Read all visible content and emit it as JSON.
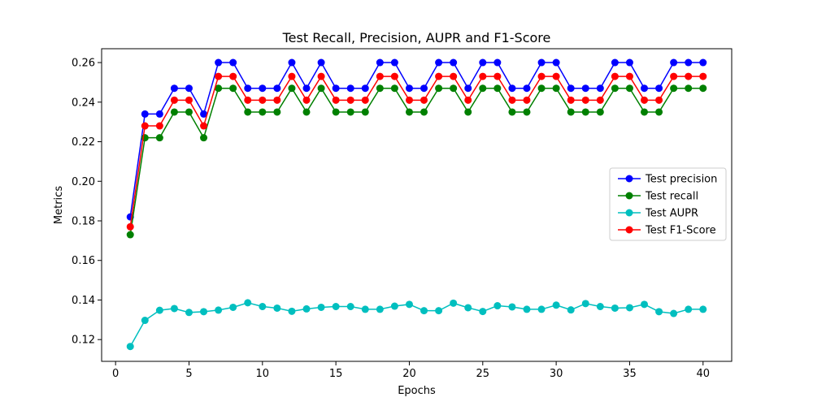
{
  "chart_data": {
    "type": "line",
    "title": "Test Recall, Precision, AUPR and F1-Score",
    "xlabel": "Epochs",
    "ylabel": "Metrics",
    "xlim": [
      -0.95,
      41.95
    ],
    "ylim": [
      0.109,
      0.267
    ],
    "xticks": [
      0,
      5,
      10,
      15,
      20,
      25,
      30,
      35,
      40
    ],
    "yticks": [
      0.12,
      0.14,
      0.16,
      0.18,
      0.2,
      0.22,
      0.24,
      0.26
    ],
    "ytick_labels": [
      "0.12",
      "0.14",
      "0.16",
      "0.18",
      "0.20",
      "0.22",
      "0.24",
      "0.26"
    ],
    "legend_position": "center-right",
    "grid": false,
    "x": [
      1,
      2,
      3,
      4,
      5,
      6,
      7,
      8,
      9,
      10,
      11,
      12,
      13,
      14,
      15,
      16,
      17,
      18,
      19,
      20,
      21,
      22,
      23,
      24,
      25,
      26,
      27,
      28,
      29,
      30,
      31,
      32,
      33,
      34,
      35,
      36,
      37,
      38,
      39,
      40
    ],
    "series": [
      {
        "name": "Test precision",
        "color": "#0000ff",
        "values": [
          0.182,
          0.234,
          0.234,
          0.247,
          0.247,
          0.234,
          0.26,
          0.26,
          0.247,
          0.247,
          0.247,
          0.26,
          0.247,
          0.26,
          0.247,
          0.247,
          0.247,
          0.26,
          0.26,
          0.247,
          0.247,
          0.26,
          0.26,
          0.247,
          0.26,
          0.26,
          0.247,
          0.247,
          0.26,
          0.26,
          0.247,
          0.247,
          0.247,
          0.26,
          0.26,
          0.247,
          0.247,
          0.26,
          0.26,
          0.26
        ]
      },
      {
        "name": "Test recall",
        "color": "#008000",
        "values": [
          0.173,
          0.222,
          0.222,
          0.235,
          0.235,
          0.222,
          0.247,
          0.247,
          0.235,
          0.235,
          0.235,
          0.247,
          0.235,
          0.247,
          0.235,
          0.235,
          0.235,
          0.247,
          0.247,
          0.235,
          0.235,
          0.247,
          0.247,
          0.235,
          0.247,
          0.247,
          0.235,
          0.235,
          0.247,
          0.247,
          0.235,
          0.235,
          0.235,
          0.247,
          0.247,
          0.235,
          0.235,
          0.247,
          0.247,
          0.247
        ]
      },
      {
        "name": "Test AUPR",
        "color": "#00bfbf",
        "values": [
          0.1165,
          0.1297,
          0.1348,
          0.1357,
          0.1337,
          0.1341,
          0.1349,
          0.1363,
          0.1386,
          0.1367,
          0.1359,
          0.1343,
          0.1355,
          0.1363,
          0.1367,
          0.1367,
          0.1353,
          0.1353,
          0.1369,
          0.1378,
          0.1346,
          0.1346,
          0.1384,
          0.1361,
          0.1342,
          0.1371,
          0.1365,
          0.1353,
          0.1353,
          0.1374,
          0.135,
          0.1382,
          0.1367,
          0.1359,
          0.1361,
          0.1378,
          0.1341,
          0.1332,
          0.1353,
          0.1353
        ]
      },
      {
        "name": "Test F1-Score",
        "color": "#ff0000",
        "values": [
          0.177,
          0.228,
          0.228,
          0.241,
          0.241,
          0.228,
          0.253,
          0.253,
          0.241,
          0.241,
          0.241,
          0.253,
          0.241,
          0.253,
          0.241,
          0.241,
          0.241,
          0.253,
          0.253,
          0.241,
          0.241,
          0.253,
          0.253,
          0.241,
          0.253,
          0.253,
          0.241,
          0.241,
          0.253,
          0.253,
          0.241,
          0.241,
          0.241,
          0.253,
          0.253,
          0.241,
          0.241,
          0.253,
          0.253,
          0.253
        ]
      }
    ]
  }
}
